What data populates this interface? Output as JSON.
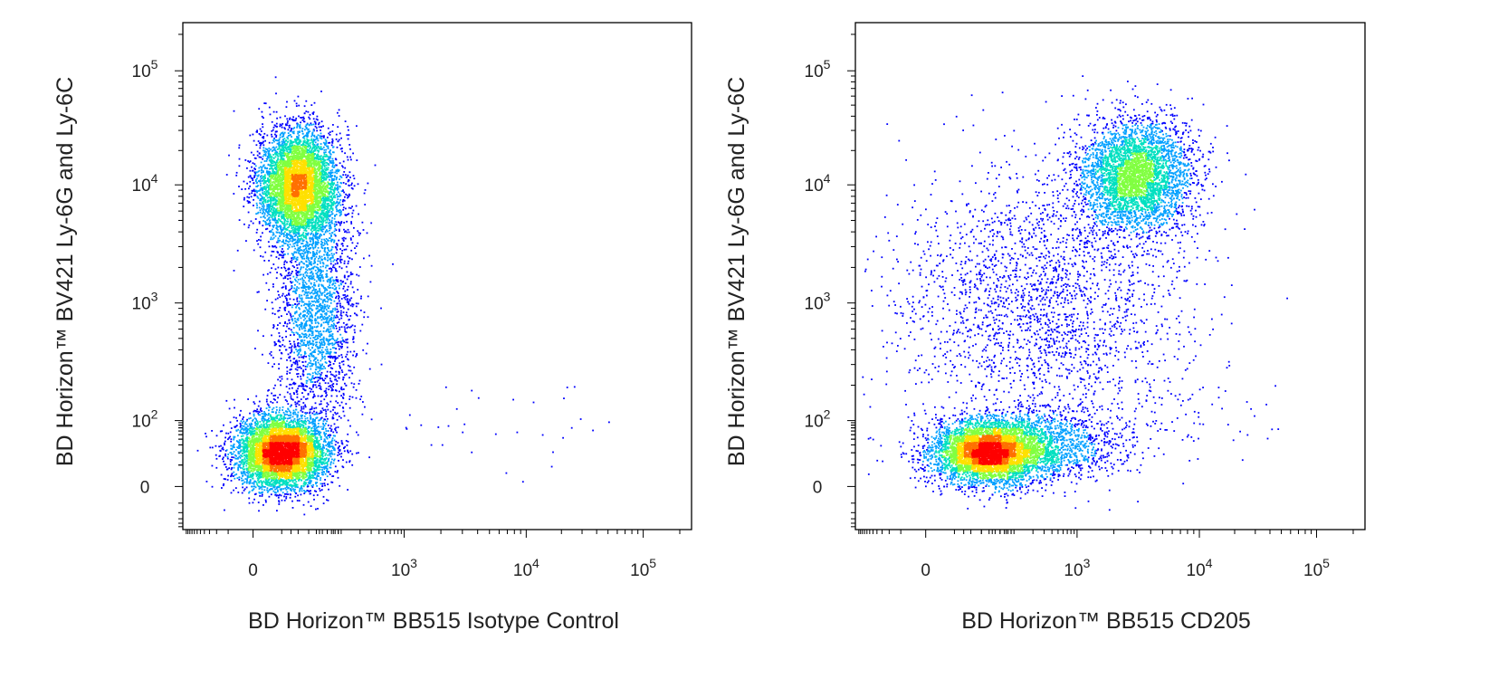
{
  "figure": {
    "panels": [
      {
        "xlabel": "BD Horizon™ BB515 Isotype Control",
        "ylabel": "BD Horizon™ BV421 Ly-6G and Ly-6C",
        "xticks": [
          {
            "value": 0,
            "base": "0",
            "exp": ""
          },
          {
            "value": 1000,
            "base": "10",
            "exp": "3"
          },
          {
            "value": 10000,
            "base": "10",
            "exp": "4"
          },
          {
            "value": 100000,
            "base": "10",
            "exp": "5"
          }
        ],
        "yticks": [
          {
            "value": 0,
            "base": "0",
            "exp": ""
          },
          {
            "value": 100,
            "base": "10",
            "exp": "2"
          },
          {
            "value": 1000,
            "base": "10",
            "exp": "3"
          },
          {
            "value": 10000,
            "base": "10",
            "exp": "4"
          },
          {
            "value": 100000,
            "base": "10",
            "exp": "5"
          }
        ]
      },
      {
        "xlabel": "BD Horizon™ BB515 CD205",
        "ylabel": "BD Horizon™ BV421 Ly-6G and Ly-6C",
        "xticks": [
          {
            "value": 0,
            "base": "0",
            "exp": ""
          },
          {
            "value": 1000,
            "base": "10",
            "exp": "3"
          },
          {
            "value": 10000,
            "base": "10",
            "exp": "4"
          },
          {
            "value": 100000,
            "base": "10",
            "exp": "5"
          }
        ],
        "yticks": [
          {
            "value": 0,
            "base": "0",
            "exp": ""
          },
          {
            "value": 100,
            "base": "10",
            "exp": "2"
          },
          {
            "value": 1000,
            "base": "10",
            "exp": "3"
          },
          {
            "value": 10000,
            "base": "10",
            "exp": "4"
          },
          {
            "value": 100000,
            "base": "10",
            "exp": "5"
          }
        ]
      }
    ]
  },
  "chart_data": [
    {
      "type": "scatter",
      "plot_style": "pseudocolor density dot plot",
      "xlabel": "BD Horizon™ BB515 Isotype Control",
      "ylabel": "BD Horizon™ BV421 Ly-6G and Ly-6C",
      "x_scale": "biexponential",
      "y_scale": "biexponential",
      "xlim": [
        -200,
        250000
      ],
      "ylim": [
        -60,
        250000
      ],
      "density_colors": [
        "#0000ff",
        "#00a0ff",
        "#00e0c0",
        "#80ff40",
        "#ffe000",
        "#ff7000",
        "#ff0000"
      ],
      "populations": [
        {
          "x_center": 20,
          "y_center": 10000,
          "share": 0.4,
          "density_peak": "yellow"
        },
        {
          "x_center": 10,
          "y_center": 20,
          "share": 0.42,
          "density_peak": "red"
        },
        {
          "x_center": 40,
          "y_center": 800,
          "share": 0.16,
          "density_peak": "blue"
        },
        {
          "x_range": [
            1000,
            60000
          ],
          "y_range": [
            0,
            200
          ],
          "share": 0.02,
          "density_peak": "blue"
        }
      ]
    },
    {
      "type": "scatter",
      "plot_style": "pseudocolor density dot plot",
      "xlabel": "BD Horizon™ BB515 CD205",
      "ylabel": "BD Horizon™ BV421 Ly-6G and Ly-6C",
      "x_scale": "biexponential",
      "y_scale": "biexponential",
      "xlim": [
        -200,
        250000
      ],
      "ylim": [
        -60,
        250000
      ],
      "density_colors": [
        "#0000ff",
        "#00a0ff",
        "#00e0c0",
        "#80ff40",
        "#ffe000",
        "#ff7000",
        "#ff0000"
      ],
      "populations": [
        {
          "x_center": 3000,
          "y_center": 12000,
          "share": 0.3,
          "density_peak": "yellow"
        },
        {
          "x_center": 40,
          "y_center": 20,
          "share": 0.38,
          "density_peak": "red"
        },
        {
          "x_center": 200,
          "y_center": 30,
          "share": 0.12,
          "density_peak": "green"
        },
        {
          "x_center": 300,
          "y_center": 1000,
          "share": 0.18,
          "density_peak": "blue"
        },
        {
          "x_range": [
            2000,
            50000
          ],
          "y_range": [
            0,
            200
          ],
          "share": 0.02,
          "density_peak": "blue"
        }
      ]
    }
  ]
}
